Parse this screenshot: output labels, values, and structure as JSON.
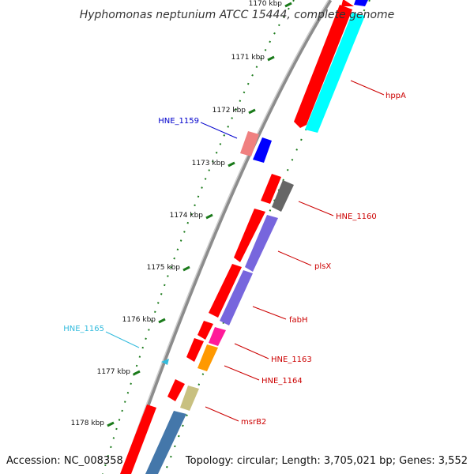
{
  "title": "Hyphomonas neptunium ATCC 15444, complete genome",
  "footer": {
    "accession": "Accession: NC_008358",
    "summary": "Topology: circular; Length: 3,705,021 bp; Genes: 3,552"
  },
  "colors": {
    "backbone": "#8c8c8c",
    "tick": "#1a7a1a",
    "forward_label": "#cc0000",
    "blue_label": "#0000cc",
    "cyan_label": "#33bbdd"
  },
  "ticks": [
    {
      "label": "1170 kbp",
      "kbp": 1170
    },
    {
      "label": "1171 kbp",
      "kbp": 1171
    },
    {
      "label": "1172 kbp",
      "kbp": 1172
    },
    {
      "label": "1173 kbp",
      "kbp": 1173
    },
    {
      "label": "1174 kbp",
      "kbp": 1174
    },
    {
      "label": "1175 kbp",
      "kbp": 1175
    },
    {
      "label": "1176 kbp",
      "kbp": 1176
    },
    {
      "label": "1177 kbp",
      "kbp": 1177
    },
    {
      "label": "1178 kbp",
      "kbp": 1178
    }
  ],
  "genes": [
    {
      "name": "hppA",
      "label": "hppA",
      "label_color": "#cc0000"
    },
    {
      "name": "HNE_1159",
      "label": "HNE_1159",
      "label_color": "#0000cc"
    },
    {
      "name": "HNE_1160",
      "label": "HNE_1160",
      "label_color": "#cc0000"
    },
    {
      "name": "plsX",
      "label": "plsX",
      "label_color": "#cc0000"
    },
    {
      "name": "fabH",
      "label": "fabH",
      "label_color": "#cc0000"
    },
    {
      "name": "HNE_1163",
      "label": "HNE_1163",
      "label_color": "#cc0000"
    },
    {
      "name": "HNE_1164",
      "label": "HNE_1164",
      "label_color": "#cc0000"
    },
    {
      "name": "HNE_1165",
      "label": "HNE_1165",
      "label_color": "#33bbdd"
    },
    {
      "name": "msrB2",
      "label": "msrB2",
      "label_color": "#cc0000"
    }
  ]
}
